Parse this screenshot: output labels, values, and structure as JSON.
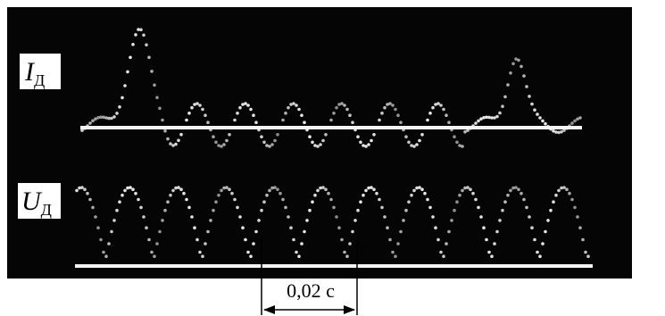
{
  "labels": {
    "current": {
      "symbol": "I",
      "subscript": "Д"
    },
    "voltage": {
      "symbol": "U",
      "subscript": "Д"
    }
  },
  "scale_label": "0,02 с"
}
